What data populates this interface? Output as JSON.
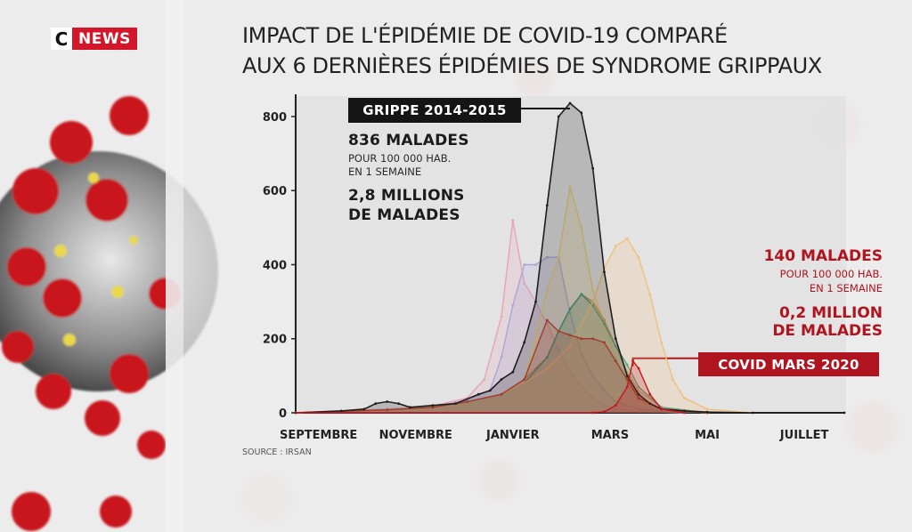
{
  "brand": {
    "logo_c": "C",
    "logo_news": "NEWS",
    "red": "#d3162a"
  },
  "title_line1": "IMPACT DE L'ÉPIDÉMIE DE COVID-19 COMPARÉ",
  "title_line2": "AUX 6 DERNIÈRES ÉPIDÉMIES DE SYNDROME GRIPPAUX",
  "annotations": {
    "flu_badge": "GRIPPE 2014-2015",
    "flu_peak": "836 MALADES",
    "flu_rate_line1": "POUR 100 000 HAB.",
    "flu_rate_line2": "EN 1 SEMAINE",
    "flu_total_line1": "2,8 MILLIONS",
    "flu_total_line2": "DE MALADES",
    "covid_peak": "140 MALADES",
    "covid_rate_line1": "POUR 100 000 HAB.",
    "covid_rate_line2": "EN 1 SEMAINE",
    "covid_total_line1": "0,2 MILLION",
    "covid_total_line2": "DE MALADES",
    "covid_badge": "COVID MARS 2020"
  },
  "source": "SOURCE : IRSAN",
  "chart_data": {
    "type": "area",
    "x_unit": "week index (0 = early September)",
    "x_tick_labels": [
      "SEPTEMBRE",
      "NOVEMBRE",
      "JANVIER",
      "MARS",
      "MAI",
      "JUILLET"
    ],
    "x_tick_positions": [
      2,
      10.5,
      19,
      27.5,
      36,
      44.5
    ],
    "y_ticks": [
      0,
      200,
      400,
      600,
      800
    ],
    "xlim": [
      0,
      48
    ],
    "ylim": [
      0,
      860
    ],
    "series": [
      {
        "color": "#e8a2b6",
        "x": [
          0,
          8,
          12,
          15,
          16.5,
          18,
          19,
          20,
          21,
          22,
          23,
          24,
          25,
          26,
          27,
          28,
          30,
          34
        ],
        "y": [
          0,
          10,
          18,
          40,
          90,
          260,
          520,
          350,
          300,
          240,
          170,
          110,
          70,
          40,
          20,
          10,
          4,
          0
        ]
      },
      {
        "color": "#a9a6d8",
        "x": [
          0,
          8,
          12,
          15,
          17,
          18,
          19,
          20,
          21,
          22,
          23,
          24,
          25,
          26,
          27,
          28,
          30,
          34
        ],
        "y": [
          0,
          8,
          15,
          35,
          60,
          150,
          290,
          400,
          400,
          420,
          420,
          270,
          160,
          100,
          60,
          30,
          10,
          0
        ]
      },
      {
        "color": "#e6cf7a",
        "x": [
          0,
          8,
          12,
          15,
          18,
          20,
          21,
          22,
          23,
          24,
          25,
          26,
          27,
          28,
          29,
          30,
          32,
          36
        ],
        "y": [
          0,
          8,
          15,
          30,
          50,
          90,
          200,
          330,
          420,
          610,
          500,
          330,
          240,
          150,
          80,
          35,
          10,
          0
        ]
      },
      {
        "color": "#c98d4a",
        "x": [
          0,
          8,
          12,
          15,
          18,
          20,
          22,
          23,
          24,
          25,
          26,
          27,
          28,
          29,
          30,
          32,
          36
        ],
        "y": [
          0,
          8,
          15,
          30,
          50,
          90,
          150,
          220,
          280,
          320,
          300,
          250,
          180,
          110,
          60,
          15,
          0
        ]
      },
      {
        "color": "#3f9a80",
        "x": [
          0,
          8,
          12,
          15,
          18,
          20,
          22,
          23,
          24,
          25,
          26,
          27,
          28,
          29,
          30,
          32,
          36
        ],
        "y": [
          0,
          8,
          15,
          30,
          50,
          80,
          150,
          220,
          280,
          320,
          290,
          240,
          180,
          130,
          70,
          15,
          0
        ]
      },
      {
        "color": "#f1c07b",
        "x": [
          0,
          8,
          12,
          15,
          18,
          20,
          22,
          24,
          25,
          26,
          27,
          28,
          29,
          30,
          31,
          32,
          33,
          34,
          36,
          40
        ],
        "y": [
          0,
          8,
          15,
          30,
          50,
          80,
          120,
          180,
          240,
          300,
          390,
          450,
          470,
          420,
          320,
          190,
          90,
          40,
          10,
          0
        ]
      },
      {
        "color": "#c2462f",
        "x": [
          0,
          8,
          12,
          15,
          18,
          20,
          22,
          23,
          24,
          25,
          26,
          27,
          28,
          29,
          30,
          32,
          36
        ],
        "y": [
          0,
          8,
          15,
          30,
          50,
          90,
          250,
          220,
          210,
          200,
          200,
          190,
          140,
          90,
          40,
          10,
          0
        ]
      },
      {
        "name": "GRIPPE 2014-2015",
        "color": "#1e1e1e",
        "x": [
          0,
          4,
          6,
          7,
          8,
          9,
          10,
          12,
          14,
          16,
          17,
          18,
          19,
          20,
          21,
          22,
          23,
          24,
          25,
          26,
          27,
          28,
          29,
          30,
          31,
          32,
          34,
          36,
          40,
          48
        ],
        "y": [
          0,
          5,
          10,
          25,
          30,
          25,
          15,
          20,
          25,
          50,
          60,
          90,
          110,
          190,
          300,
          560,
          800,
          836,
          810,
          660,
          380,
          200,
          100,
          50,
          25,
          10,
          5,
          2,
          0,
          0
        ]
      },
      {
        "name": "COVID MARS 2020",
        "color": "#c8161f",
        "x": [
          0,
          26,
          27,
          28,
          29,
          29.5,
          30,
          31,
          32,
          34
        ],
        "y": [
          0,
          0,
          3,
          20,
          70,
          140,
          120,
          50,
          10,
          0
        ]
      }
    ]
  }
}
